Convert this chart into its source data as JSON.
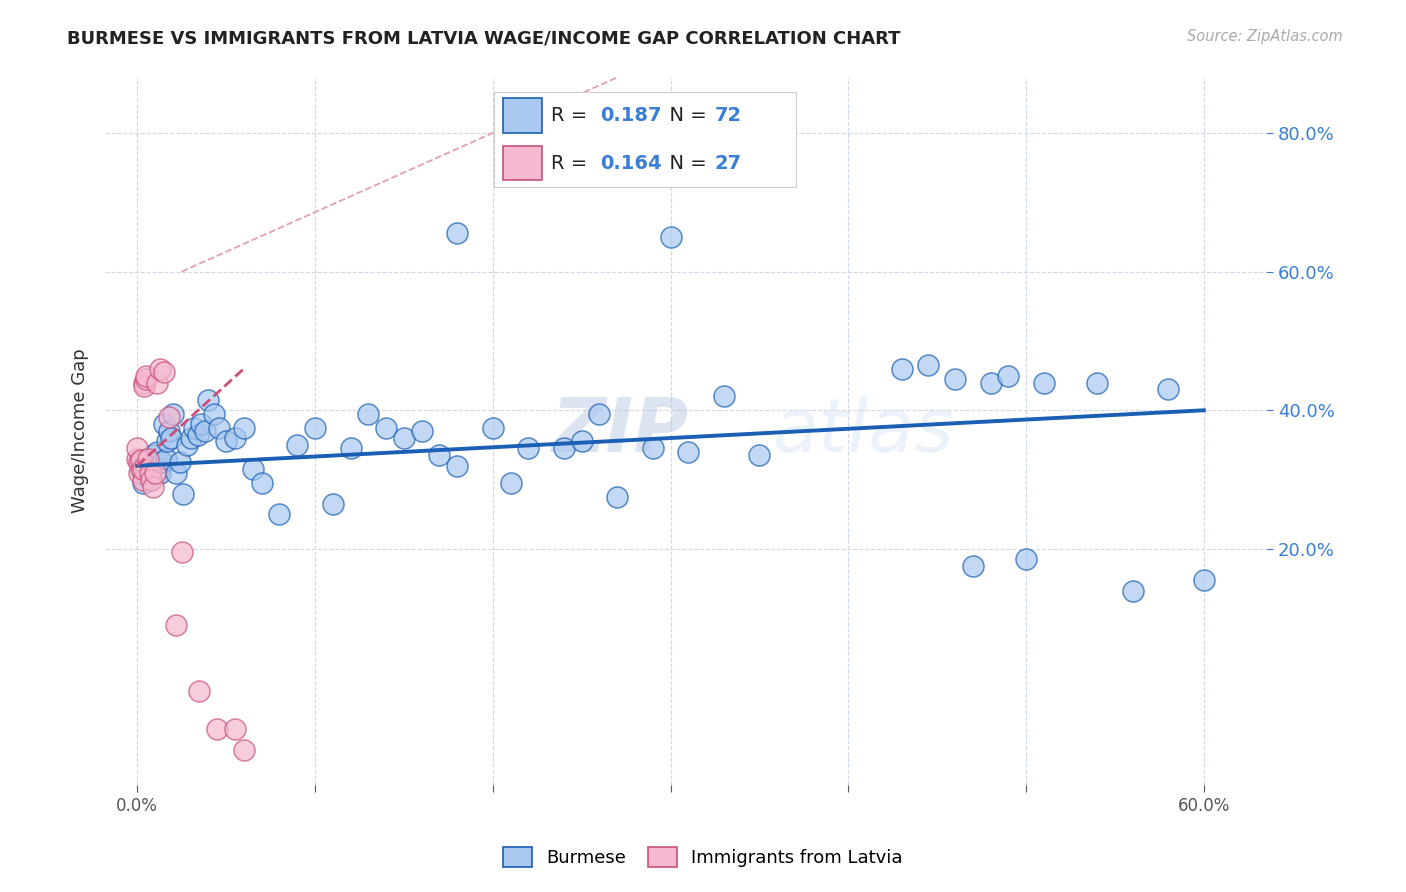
{
  "title": "BURMESE VS IMMIGRANTS FROM LATVIA WAGE/INCOME GAP CORRELATION CHART",
  "source": "Source: ZipAtlas.com",
  "ylabel": "Wage/Income Gap",
  "R_burmese": "0.187",
  "N_burmese": "72",
  "R_latvia": "0.164",
  "N_latvia": "27",
  "xlim": [
    -0.018,
    0.635
  ],
  "ylim": [
    -0.14,
    0.88
  ],
  "xtick_positions": [
    0.0,
    0.1,
    0.2,
    0.3,
    0.4,
    0.5,
    0.6
  ],
  "ytick_positions": [
    0.2,
    0.4,
    0.6,
    0.8
  ],
  "color_burmese": "#a8c8f0",
  "color_latvia": "#f5b8d0",
  "trend_color_burmese": "#1a5fb4",
  "trend_color_latvia": "#c8507a",
  "ref_line_color": "#e0a0b8",
  "grid_color": "#d0d8e8",
  "burmese_x": [
    0.002,
    0.003,
    0.004,
    0.005,
    0.006,
    0.007,
    0.008,
    0.009,
    0.01,
    0.011,
    0.012,
    0.013,
    0.014,
    0.015,
    0.016,
    0.017,
    0.018,
    0.019,
    0.02,
    0.022,
    0.024,
    0.026,
    0.028,
    0.03,
    0.032,
    0.034,
    0.036,
    0.038,
    0.04,
    0.043,
    0.046,
    0.05,
    0.055,
    0.06,
    0.065,
    0.07,
    0.08,
    0.09,
    0.1,
    0.11,
    0.12,
    0.13,
    0.14,
    0.15,
    0.16,
    0.17,
    0.18,
    0.2,
    0.21,
    0.22,
    0.24,
    0.25,
    0.26,
    0.27,
    0.29,
    0.31,
    0.33,
    0.35,
    0.43,
    0.445,
    0.46,
    0.47,
    0.48,
    0.49,
    0.5,
    0.51,
    0.54,
    0.56,
    0.18,
    0.3,
    0.58,
    0.6
  ],
  "burmese_y": [
    0.32,
    0.295,
    0.31,
    0.33,
    0.305,
    0.32,
    0.3,
    0.335,
    0.325,
    0.34,
    0.315,
    0.31,
    0.325,
    0.38,
    0.33,
    0.355,
    0.37,
    0.36,
    0.395,
    0.31,
    0.325,
    0.28,
    0.35,
    0.36,
    0.375,
    0.365,
    0.38,
    0.37,
    0.415,
    0.395,
    0.375,
    0.355,
    0.36,
    0.375,
    0.315,
    0.295,
    0.25,
    0.35,
    0.375,
    0.265,
    0.345,
    0.395,
    0.375,
    0.36,
    0.37,
    0.335,
    0.32,
    0.375,
    0.295,
    0.345,
    0.345,
    0.355,
    0.395,
    0.275,
    0.345,
    0.34,
    0.42,
    0.335,
    0.46,
    0.465,
    0.445,
    0.175,
    0.44,
    0.45,
    0.185,
    0.44,
    0.44,
    0.14,
    0.655,
    0.65,
    0.43,
    0.155
  ],
  "latvia_x": [
    0.0,
    0.0,
    0.001,
    0.001,
    0.002,
    0.002,
    0.003,
    0.003,
    0.004,
    0.004,
    0.005,
    0.005,
    0.006,
    0.007,
    0.008,
    0.009,
    0.01,
    0.011,
    0.013,
    0.015,
    0.018,
    0.022,
    0.025,
    0.035,
    0.045,
    0.055,
    0.06
  ],
  "latvia_y": [
    0.33,
    0.345,
    0.31,
    0.325,
    0.315,
    0.328,
    0.3,
    0.315,
    0.44,
    0.435,
    0.445,
    0.45,
    0.33,
    0.31,
    0.3,
    0.29,
    0.31,
    0.44,
    0.46,
    0.455,
    0.39,
    0.09,
    0.195,
    -0.005,
    -0.06,
    -0.06,
    -0.09
  ],
  "ref_line_x": [
    0.025,
    0.27
  ],
  "ref_line_y": [
    0.62,
    0.9
  ],
  "burmese_trend_x": [
    0.0,
    0.6
  ],
  "burmese_trend_y": [
    0.32,
    0.4
  ],
  "latvia_trend_x": [
    0.0,
    0.06
  ],
  "latvia_trend_y": [
    0.32,
    0.46
  ]
}
